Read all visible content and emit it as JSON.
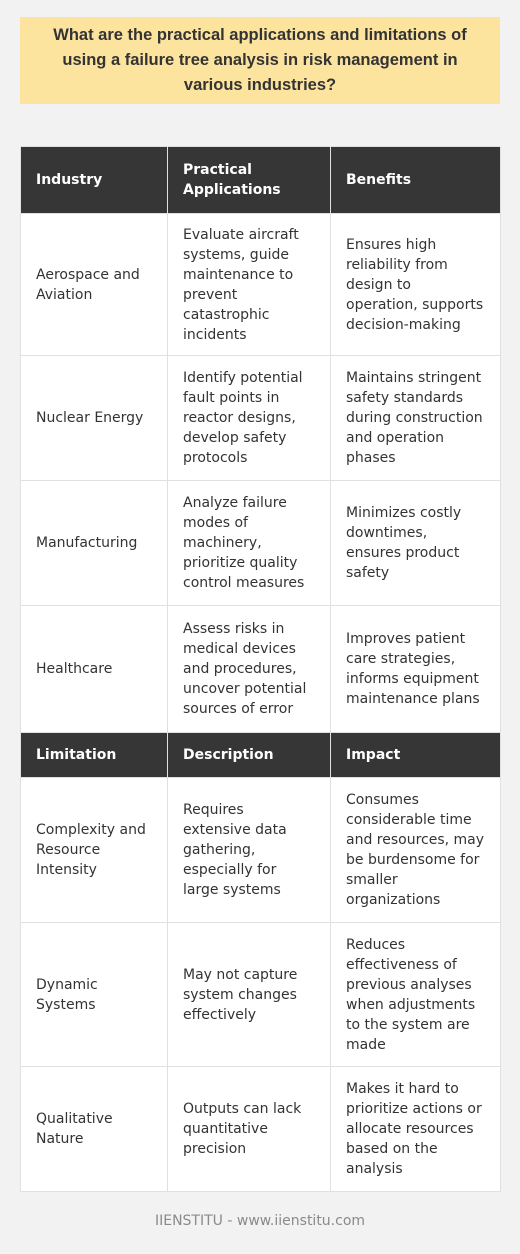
{
  "title": "What are the practical applications and limitations of using a failure tree analysis in risk management in various industries?",
  "applications_header": {
    "col1": "Industry",
    "col2": "Practical Applications",
    "col3": "Benefits"
  },
  "applications": [
    {
      "industry": "Aerospace and Aviation",
      "application": "Evaluate aircraft systems, guide maintenance to prevent catastrophic incidents",
      "benefit": "Ensures high reliability from design to operation, supports decision-making"
    },
    {
      "industry": "Nuclear Energy",
      "application": "Identify potential fault points in reactor designs, develop safety protocols",
      "benefit": "Maintains stringent safety standards during construction and operation phases"
    },
    {
      "industry": "Manufacturing",
      "application": "Analyze failure modes of machinery, prioritize quality control measures",
      "benefit": "Minimizes costly downtimes, ensures product safety"
    },
    {
      "industry": "Healthcare",
      "application": "Assess risks in medical devices and procedures, uncover potential sources of error",
      "benefit": "Improves patient care strategies, informs equipment maintenance plans"
    }
  ],
  "limitations_header": {
    "col1": "Limitation",
    "col2": "Description",
    "col3": "Impact"
  },
  "limitations": [
    {
      "limitation": "Complexity and Resource Intensity",
      "description": "Requires extensive data gathering, especially for large systems",
      "impact": "Consumes considerable time and resources, may be burdensome for smaller organizations"
    },
    {
      "limitation": "Dynamic Systems",
      "description": "May not capture system changes effectively",
      "impact": "Reduces effectiveness of previous analyses when adjustments to the system are made"
    },
    {
      "limitation": "Qualitative Nature",
      "description": "Outputs can lack quantitative precision",
      "impact": "Makes it hard to prioritize actions or allocate resources based on the analysis"
    }
  ],
  "footer": "IIENSTITU - www.iienstitu.com",
  "colors": {
    "title_background": "#fce49e",
    "header_background": "#363636",
    "page_background": "#f2f2f2",
    "cell_background": "#ffffff"
  }
}
